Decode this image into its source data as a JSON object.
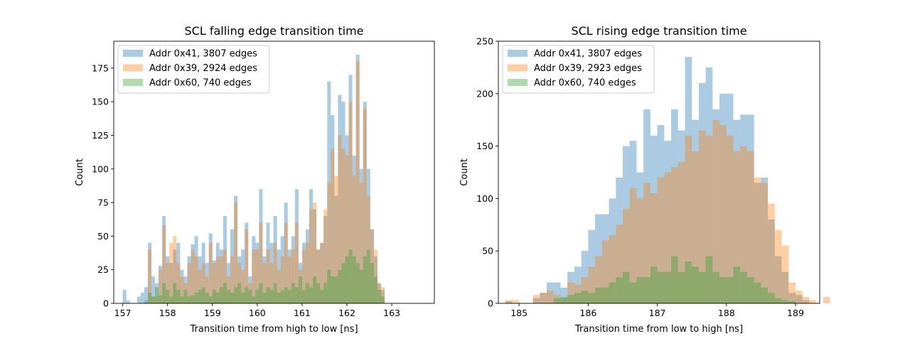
{
  "chart_data": [
    {
      "type": "histogram",
      "title": "SCL falling edge transition time",
      "xlabel": "Transition time from high to low [ns]",
      "ylabel": "Count",
      "xlim": [
        156.8,
        163.95
      ],
      "ylim": [
        0,
        195
      ],
      "xticks": [
        157,
        158,
        159,
        160,
        161,
        162,
        163
      ],
      "yticks": [
        0,
        25,
        50,
        75,
        100,
        125,
        150,
        175
      ],
      "bin_start": 157.0,
      "bin_width": 0.08,
      "legend_position": "top-left",
      "series": [
        {
          "name": "Addr 0x41, 3807 edges",
          "color": "#1f77b4",
          "values": [
            10,
            2,
            0,
            0,
            5,
            8,
            12,
            45,
            20,
            15,
            28,
            65,
            35,
            30,
            40,
            45,
            25,
            20,
            35,
            44,
            50,
            35,
            45,
            30,
            52,
            32,
            45,
            40,
            65,
            30,
            55,
            80,
            35,
            40,
            60,
            20,
            50,
            45,
            85,
            35,
            60,
            45,
            65,
            40,
            50,
            75,
            40,
            50,
            85,
            30,
            45,
            55,
            85,
            70,
            40,
            45,
            65,
            165,
            140,
            80,
            155,
            150,
            125,
            170,
            110,
            185,
            100,
            150,
            100,
            55,
            35,
            15,
            10
          ]
        },
        {
          "name": "Addr 0x39, 2924 edges",
          "color": "#ff7f0e",
          "values": [
            0,
            0,
            0,
            0,
            0,
            0,
            0,
            40,
            5,
            5,
            25,
            58,
            30,
            45,
            50,
            30,
            20,
            15,
            30,
            40,
            35,
            25,
            30,
            20,
            45,
            30,
            35,
            35,
            40,
            20,
            35,
            75,
            30,
            25,
            55,
            15,
            40,
            40,
            60,
            30,
            40,
            30,
            45,
            25,
            35,
            60,
            35,
            40,
            60,
            25,
            40,
            45,
            70,
            75,
            40,
            45,
            70,
            90,
            115,
            95,
            125,
            115,
            110,
            150,
            95,
            180,
            90,
            145,
            80,
            55,
            40,
            15,
            12
          ]
        },
        {
          "name": "Addr 0x60, 740 edges",
          "color": "#2ca02c",
          "values": [
            0,
            0,
            0,
            0,
            0,
            0,
            2,
            8,
            5,
            12,
            6,
            15,
            10,
            5,
            15,
            10,
            5,
            10,
            5,
            6,
            8,
            10,
            12,
            8,
            5,
            10,
            8,
            12,
            15,
            10,
            8,
            12,
            15,
            8,
            12,
            10,
            5,
            10,
            15,
            8,
            12,
            10,
            15,
            8,
            10,
            12,
            10,
            15,
            12,
            20,
            10,
            15,
            12,
            20,
            15,
            10,
            15,
            25,
            20,
            20,
            25,
            30,
            35,
            40,
            35,
            30,
            25,
            35,
            40,
            30,
            20,
            10,
            5
          ]
        }
      ]
    },
    {
      "type": "histogram",
      "title": "SCL rising edge transition time",
      "xlabel": "Transition time from low to high [ns]",
      "ylabel": "Count",
      "xlim": [
        184.7,
        189.35
      ],
      "ylim": [
        0,
        250
      ],
      "xticks": [
        185,
        186,
        187,
        188,
        189
      ],
      "yticks": [
        0,
        50,
        100,
        150,
        200,
        250
      ],
      "bin_start": 184.8,
      "bin_width": 0.1,
      "legend_position": "top-left",
      "series": [
        {
          "name": "Addr 0x41, 3807 edges",
          "color": "#1f77b4",
          "values": [
            2,
            0,
            0,
            0,
            5,
            10,
            20,
            20,
            15,
            30,
            35,
            50,
            70,
            85,
            85,
            100,
            120,
            150,
            155,
            125,
            185,
            160,
            170,
            155,
            185,
            165,
            235,
            175,
            210,
            225,
            185,
            200,
            200,
            175,
            180,
            180,
            115,
            120,
            80,
            45,
            30,
            10,
            8,
            3,
            0,
            0,
            0
          ]
        },
        {
          "name": "Addr 0x39, 2923 edges",
          "color": "#ff7f0e",
          "values": [
            3,
            3,
            0,
            0,
            8,
            10,
            12,
            8,
            5,
            20,
            18,
            25,
            35,
            45,
            60,
            65,
            75,
            90,
            110,
            100,
            115,
            105,
            120,
            125,
            130,
            135,
            160,
            145,
            165,
            160,
            175,
            170,
            160,
            145,
            150,
            145,
            120,
            115,
            95,
            70,
            55,
            20,
            12,
            6,
            3,
            0,
            6
          ]
        },
        {
          "name": "Addr 0x60, 740 edges",
          "color": "#2ca02c",
          "values": [
            0,
            0,
            0,
            0,
            0,
            0,
            0,
            5,
            6,
            8,
            10,
            12,
            10,
            15,
            15,
            20,
            25,
            30,
            20,
            25,
            25,
            35,
            30,
            30,
            45,
            30,
            40,
            35,
            30,
            45,
            30,
            25,
            25,
            35,
            30,
            25,
            20,
            15,
            10,
            5,
            3,
            2,
            0,
            0,
            0,
            0,
            0
          ]
        }
      ]
    }
  ]
}
